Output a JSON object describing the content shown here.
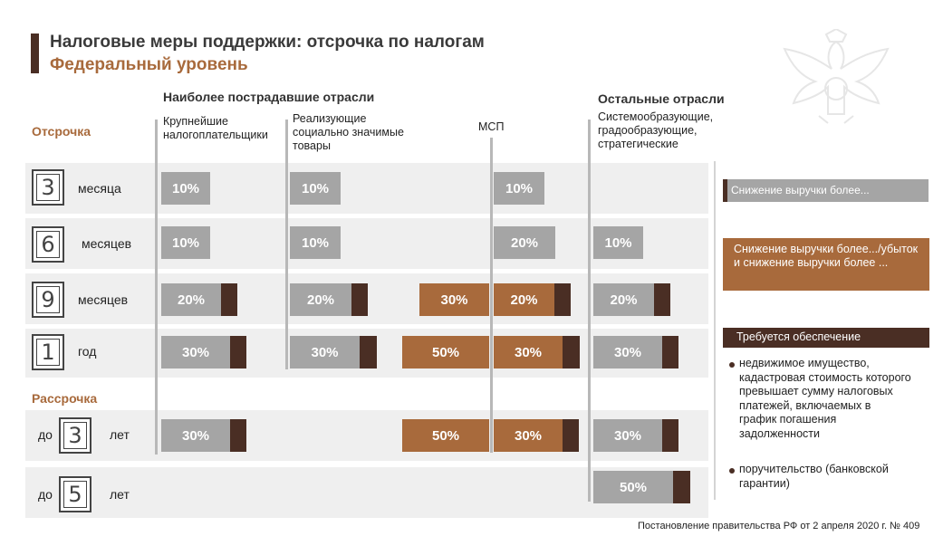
{
  "title": "Налоговые меры поддержки: отсрочка по налогам",
  "subtitle": "Федеральный уровень",
  "headers": {
    "most_affected": "Наиболее пострадавшие отрасли",
    "other": "Остальные отрасли"
  },
  "columns": {
    "largest": "Крупнейшие налогоплательщики",
    "social": "Реализующие социально значимые товары",
    "msp": "МСП",
    "system": "Системообразующие, градообразующие, стратегические"
  },
  "sections": {
    "deferral": "Отсрочка",
    "installment": "Рассрочка"
  },
  "rows": [
    {
      "number": "3",
      "label": "месяца",
      "prefix": ""
    },
    {
      "number": "6",
      "label": "месяцев",
      "prefix": ""
    },
    {
      "number": "9",
      "label": "месяцев",
      "prefix": ""
    },
    {
      "number": "1",
      "label": "год",
      "prefix": ""
    },
    {
      "number": "3",
      "label": "лет",
      "prefix": "до"
    },
    {
      "number": "5",
      "label": "лет",
      "prefix": "до"
    }
  ],
  "cells": [
    [
      "10%",
      "10%",
      "",
      "10%",
      ""
    ],
    [
      "10%",
      "10%",
      "",
      "20%",
      "10%"
    ],
    [
      "20%",
      "20%",
      "30%",
      "20%",
      "20%"
    ],
    [
      "30%",
      "30%",
      "50%",
      "30%",
      "30%"
    ],
    [
      "30%",
      "",
      "50%",
      "30%",
      "30%"
    ],
    [
      "",
      "",
      "",
      "",
      "50%"
    ]
  ],
  "legend": {
    "gray": "Снижение выручки более...",
    "brown": "Снижение выручки более.../убыток и снижение выручки более ...",
    "dark": "Требуется обеспечение",
    "bullet1": "недвижимое имущество, кадастровая стоимость которого превышает сумму налоговых платежей, включаемых в график погашения задолженности",
    "bullet2": "поручительство (банковской гарантии)"
  },
  "footer": "Постановление правительства РФ от 2 апреля 2020 г. № 409",
  "colors": {
    "gray": "#a5a5a5",
    "brown": "#a86a3c",
    "dark": "#4a2e24"
  }
}
